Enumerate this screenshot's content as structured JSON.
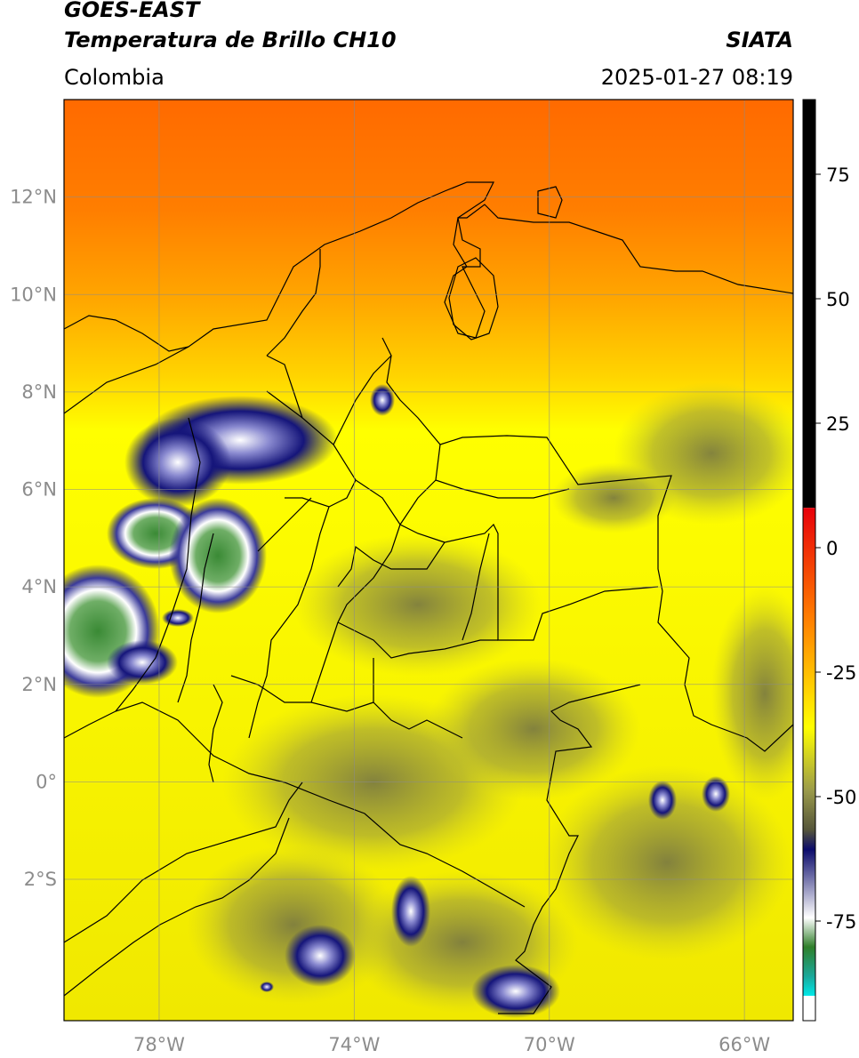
{
  "header": {
    "satellite": "GOES-EAST",
    "product": "Temperatura de Brillo CH10",
    "source": "SIATA",
    "region": "Colombia",
    "timestamp": "2025-01-27 08:19"
  },
  "map": {
    "lat_range": [
      -4.9,
      14.0
    ],
    "lon_range": [
      -79.95,
      -65.0
    ],
    "lat_ticks": [
      {
        "value": 12,
        "label": "12°N"
      },
      {
        "value": 10,
        "label": "10°N"
      },
      {
        "value": 8,
        "label": "8°N"
      },
      {
        "value": 6,
        "label": "6°N"
      },
      {
        "value": 4,
        "label": "4°N"
      },
      {
        "value": 2,
        "label": "2°N"
      },
      {
        "value": 0,
        "label": "0°"
      },
      {
        "value": -2,
        "label": "2°S"
      }
    ],
    "lon_ticks": [
      {
        "value": -78,
        "label": "78°W"
      },
      {
        "value": -74,
        "label": "74°W"
      },
      {
        "value": -70,
        "label": "70°W"
      },
      {
        "value": -66,
        "label": "66°W"
      }
    ],
    "grid": true
  },
  "colorbar": {
    "range": [
      -95,
      90
    ],
    "ticks": [
      {
        "value": 75,
        "label": "75"
      },
      {
        "value": 50,
        "label": "50"
      },
      {
        "value": 25,
        "label": "25"
      },
      {
        "value": 0,
        "label": "0"
      },
      {
        "value": -25,
        "label": "-25"
      },
      {
        "value": -50,
        "label": "-50"
      },
      {
        "value": -75,
        "label": "-75"
      }
    ],
    "colors": {
      "black_top": "#000000",
      "red": "#e8000a",
      "orange": "#ff7a00",
      "yellow": "#ffff00",
      "olive": "#6f6f3a",
      "navy": "#0b0b6b",
      "white": "#ffffff",
      "green": "#2f7f2a",
      "teal": "#1aa89a",
      "cyan": "#00e0e0"
    }
  }
}
